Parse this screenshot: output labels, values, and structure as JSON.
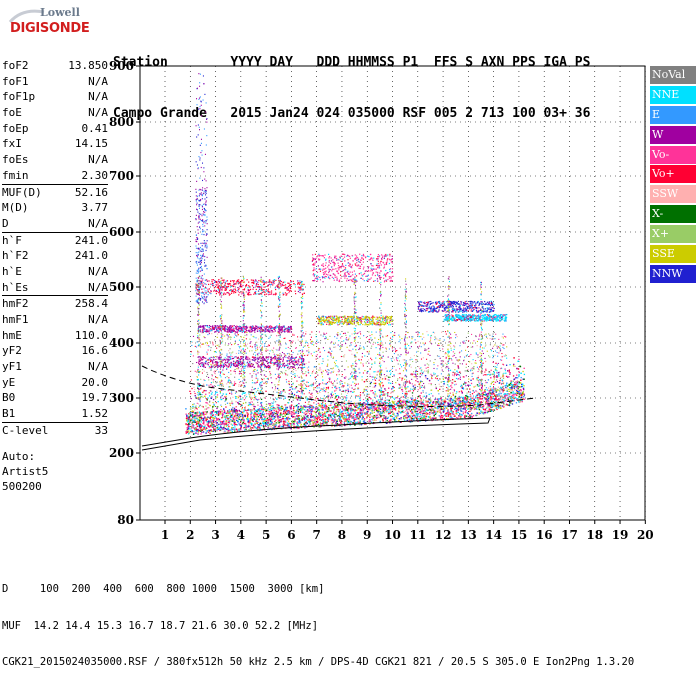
{
  "logo": {
    "top": "Lowell",
    "bottom": "DIGISONDE"
  },
  "header": {
    "line1": "Station        YYYY DAY   DDD HHMMSS P1  FFS S AXN PPS IGA PS",
    "line2": "Campo Grande   2015 Jan24 024 035000 RSF 005 2 713 100 03+ 36"
  },
  "params": [
    {
      "label": "foF2",
      "value": "13.850"
    },
    {
      "label": "foF1",
      "value": "N/A"
    },
    {
      "label": "foF1p",
      "value": "N/A"
    },
    {
      "label": "foE",
      "value": "N/A"
    },
    {
      "label": "foEp",
      "value": "0.41"
    },
    {
      "label": "fxI",
      "value": "14.15"
    },
    {
      "label": "foEs",
      "value": "N/A"
    },
    {
      "label": "fmin",
      "value": "2.30"
    },
    {
      "label": "MUF(D)",
      "value": "52.16"
    },
    {
      "label": "M(D)",
      "value": "3.77"
    },
    {
      "label": "D",
      "value": "N/A"
    },
    {
      "label": "h`F",
      "value": "241.0"
    },
    {
      "label": "h`F2",
      "value": "241.0"
    },
    {
      "label": "h`E",
      "value": "N/A"
    },
    {
      "label": "h`Es",
      "value": "N/A"
    },
    {
      "label": "hmF2",
      "value": "258.4"
    },
    {
      "label": "hmF1",
      "value": "N/A"
    },
    {
      "label": "hmE",
      "value": "110.0"
    },
    {
      "label": "yF2",
      "value": "16.6"
    },
    {
      "label": "yF1",
      "value": "N/A"
    },
    {
      "label": "yE",
      "value": "20.0"
    },
    {
      "label": "B0",
      "value": "19.7"
    },
    {
      "label": "B1",
      "value": "1.52"
    },
    {
      "label": "C-level",
      "value": "33"
    }
  ],
  "auto": {
    "line1": "Auto:",
    "line2": "Artist5",
    "line3": "500200"
  },
  "legend": [
    {
      "label": "NoVal",
      "color": "#808080"
    },
    {
      "label": "NNE",
      "color": "#00e0ff"
    },
    {
      "label": "E",
      "color": "#3399ff"
    },
    {
      "label": "W",
      "color": "#a000a0"
    },
    {
      "label": "Vo-",
      "color": "#ff3399"
    },
    {
      "label": "Vo+",
      "color": "#ff0033"
    },
    {
      "label": "SSW",
      "color": "#ffb0b0"
    },
    {
      "label": "X-",
      "color": "#007000"
    },
    {
      "label": "X+",
      "color": "#99cc66"
    },
    {
      "label": "SSE",
      "color": "#cccc00"
    },
    {
      "label": "NNW",
      "color": "#2020d0"
    }
  ],
  "footer": {
    "line1": "D     100  200  400  600  800 1000  1500  3000 [km]",
    "line2": "MUF  14.2 14.4 15.3 16.7 18.7 21.6 30.0 52.2 [MHz]",
    "line3": "CGK21_2015024035000.RSF / 380fx512h 50 kHz 2.5 km / DPS-4D CGK21 821 / 20.5 S 305.0 E Ion2Png 1.3.20"
  },
  "chart_data": {
    "type": "scatter",
    "x_ticks": [
      "1",
      "2",
      "3",
      "4",
      "5",
      "6",
      "7",
      "8",
      "9",
      "10",
      "11",
      "12",
      "13",
      "14",
      "15",
      "16",
      "17",
      "18",
      "19",
      "20"
    ],
    "y_ticks": [
      "900",
      "800",
      "700",
      "600",
      "500",
      "400",
      "300",
      "200",
      "80"
    ],
    "xlim": [
      1,
      20
    ],
    "ylim": [
      80,
      900
    ],
    "series": [
      {
        "name": "NNE",
        "approx_trace": [
          [
            2,
            255
          ],
          [
            5,
            262
          ],
          [
            8,
            268
          ],
          [
            11,
            278
          ],
          [
            13,
            285
          ],
          [
            14,
            292
          ],
          [
            15,
            300
          ]
        ]
      },
      {
        "name": "Vo-",
        "approx_trace": [
          [
            1.8,
            240
          ],
          [
            4,
            250
          ],
          [
            7,
            258
          ],
          [
            10,
            265
          ],
          [
            13,
            278
          ],
          [
            15,
            305
          ]
        ]
      },
      {
        "name": "Vo+",
        "approx_trace": [
          [
            1.8,
            238
          ],
          [
            5,
            248
          ],
          [
            9,
            258
          ],
          [
            12,
            268
          ],
          [
            14.5,
            300
          ]
        ]
      }
    ],
    "layers_km": [
      255,
      365,
      425,
      500,
      540
    ],
    "trace_x_km": [
      [
        1.8,
        880
      ],
      [
        2.5,
        720
      ]
    ]
  }
}
